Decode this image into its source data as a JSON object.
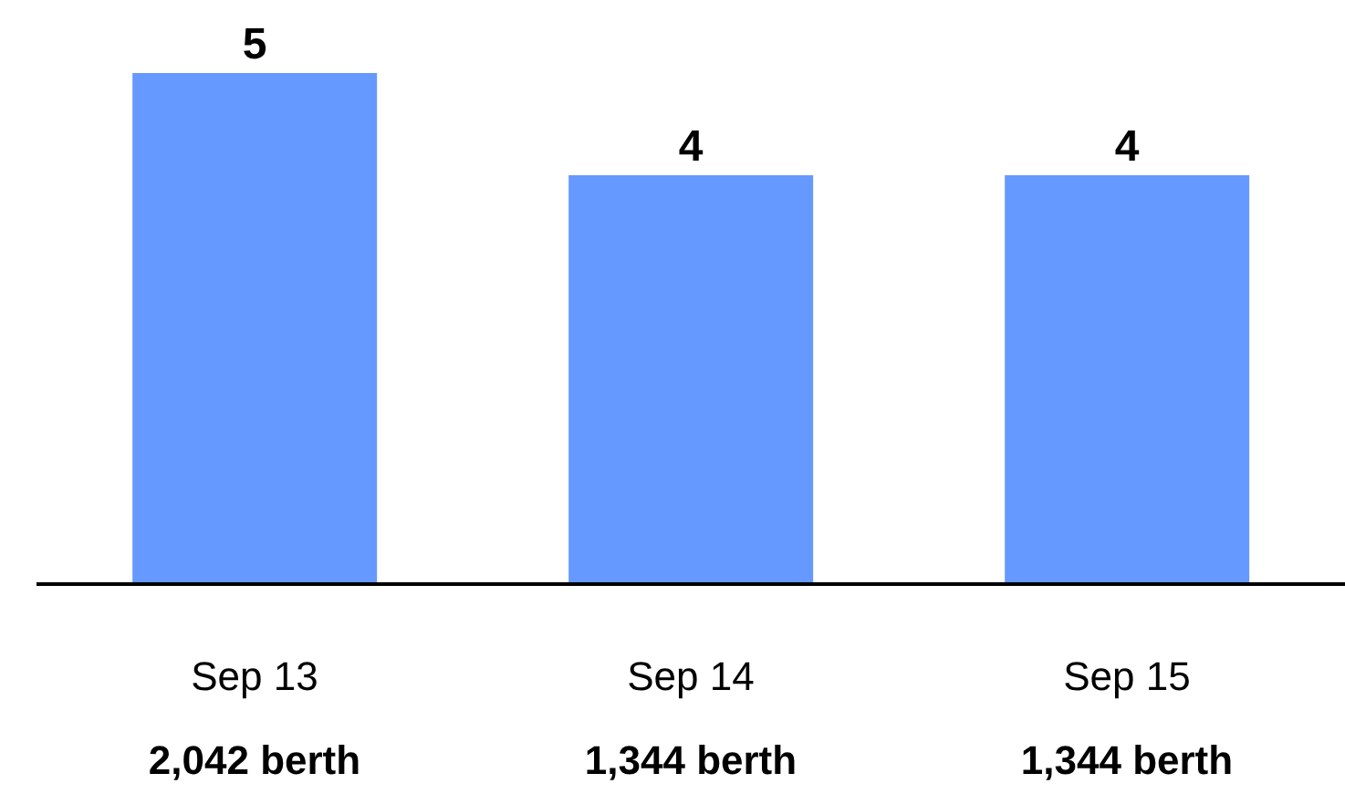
{
  "chart_data": {
    "type": "bar",
    "categories": [
      "Sep 13",
      "Sep 14",
      "Sep 15"
    ],
    "values": [
      5,
      4,
      4
    ],
    "color": "#6699ff",
    "data_labels": true,
    "annotations": [
      "2,042 berth",
      "1,344 berth",
      "1,344 berth"
    ]
  }
}
